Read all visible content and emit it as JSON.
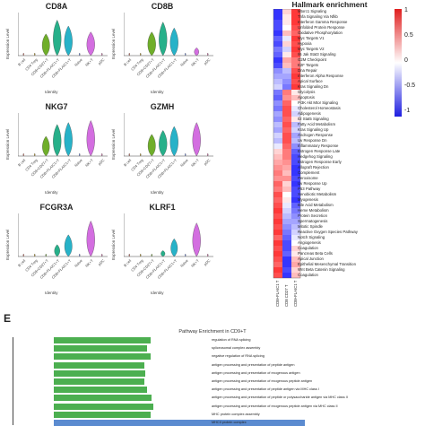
{
  "violin": {
    "ylabel": "Expression Level",
    "xlabel": "Identity",
    "categories": [
      "B cell",
      "CD4 Treg",
      "CD8+CD27+T",
      "CD8+FLAIC1+T",
      "CD8+FLAIC1+T",
      "Naive",
      "NK+T",
      "pDC"
    ],
    "colors": [
      "#e8786a",
      "#c9a227",
      "#6fae2a",
      "#27b08a",
      "#27b2c8",
      "#6f8ef0",
      "#d36ee0",
      "#e86fb5"
    ],
    "panels": [
      {
        "title": "CD8A",
        "levels": [
          0.05,
          0.05,
          0.55,
          0.9,
          0.75,
          0.05,
          0.6,
          0.05
        ]
      },
      {
        "title": "CD8B",
        "levels": [
          0.05,
          0.05,
          0.6,
          0.85,
          0.7,
          0.05,
          0.2,
          0.05
        ]
      },
      {
        "title": "NKG7",
        "levels": [
          0.05,
          0.05,
          0.5,
          0.8,
          0.85,
          0.05,
          0.9,
          0.05
        ]
      },
      {
        "title": "GZMH",
        "levels": [
          0.05,
          0.05,
          0.55,
          0.65,
          0.75,
          0.05,
          0.85,
          0.05
        ]
      },
      {
        "title": "FCGR3A",
        "levels": [
          0.05,
          0.05,
          0.05,
          0.3,
          0.55,
          0.05,
          0.9,
          0.05
        ]
      },
      {
        "title": "KLRF1",
        "levels": [
          0.05,
          0.05,
          0.05,
          0.15,
          0.45,
          0.05,
          0.85,
          0.05
        ]
      }
    ]
  },
  "heatmap": {
    "title": "Hallmark enrichment",
    "columns": [
      "CD8+FLAIC1 T",
      "CD8 CD27 T",
      "CD8+FLAIC1 T"
    ],
    "scale_labels": [
      "1",
      "0.5",
      "0",
      "-0.5",
      "-1"
    ],
    "rows": [
      {
        "name": "Mtorc1 Signaling",
        "v": [
          -0.9,
          0.2,
          0.9
        ]
      },
      {
        "name": "Tnfa Signaling Via Nfkb",
        "v": [
          -0.9,
          0.1,
          0.9
        ]
      },
      {
        "name": "Interferon Gamma Response",
        "v": [
          -0.8,
          0.1,
          0.9
        ]
      },
      {
        "name": "Unfolded Protein Response",
        "v": [
          -0.8,
          0.0,
          0.8
        ]
      },
      {
        "name": "Oxidative Phosphorylation",
        "v": [
          -0.9,
          0.3,
          0.7
        ]
      },
      {
        "name": "Myc Targets V1",
        "v": [
          -0.7,
          -0.1,
          0.9
        ]
      },
      {
        "name": "Hypoxia",
        "v": [
          -0.8,
          0.2,
          0.8
        ]
      },
      {
        "name": "Myc Targets V2",
        "v": [
          -0.6,
          -0.2,
          0.9
        ]
      },
      {
        "name": "Il6 Jak Stat3 Signaling",
        "v": [
          -0.7,
          0.1,
          0.8
        ]
      },
      {
        "name": "G2M Checkpoint",
        "v": [
          -0.9,
          0.4,
          0.6
        ]
      },
      {
        "name": "E2F Targets",
        "v": [
          -0.8,
          0.3,
          0.6
        ]
      },
      {
        "name": "Dna Repair",
        "v": [
          -0.5,
          -0.3,
          0.8
        ]
      },
      {
        "name": "Interferon Alpha Response",
        "v": [
          -0.4,
          -0.4,
          0.9
        ]
      },
      {
        "name": "Apical Surface",
        "v": [
          -0.3,
          -0.5,
          0.8
        ]
      },
      {
        "name": "Kras Signaling Dn",
        "v": [
          -0.2,
          -0.6,
          0.9
        ]
      },
      {
        "name": "Glycolysis",
        "v": [
          -0.6,
          0.6,
          0.1
        ]
      },
      {
        "name": "Apoptosis",
        "v": [
          -0.7,
          0.5,
          0.3
        ]
      },
      {
        "name": "Pi3K Akt Mtor Signaling",
        "v": [
          -0.5,
          0.7,
          0.0
        ]
      },
      {
        "name": "Cholesterol Homeostasis",
        "v": [
          -0.6,
          0.8,
          -0.1
        ]
      },
      {
        "name": "Adipogenesis",
        "v": [
          -0.4,
          0.8,
          -0.2
        ]
      },
      {
        "name": "Il2 Stat5 Signaling",
        "v": [
          -0.5,
          0.7,
          0.1
        ]
      },
      {
        "name": "Fatty Acid Metabolism",
        "v": [
          -0.3,
          0.8,
          -0.3
        ]
      },
      {
        "name": "Kras Signaling Up",
        "v": [
          -0.4,
          0.7,
          -0.2
        ]
      },
      {
        "name": "Androgen Response",
        "v": [
          -0.2,
          0.8,
          -0.4
        ]
      },
      {
        "name": "Uv Response Dn",
        "v": [
          -0.3,
          0.8,
          -0.3
        ]
      },
      {
        "name": "Inflammatory Response",
        "v": [
          -0.1,
          0.7,
          -0.5
        ]
      },
      {
        "name": "Estrogen Response Late",
        "v": [
          0.2,
          0.6,
          -0.7
        ]
      },
      {
        "name": "Hedgehog Signaling",
        "v": [
          0.3,
          0.6,
          -0.8
        ]
      },
      {
        "name": "Estrogen Response Early",
        "v": [
          0.4,
          0.5,
          -0.8
        ]
      },
      {
        "name": "Allograft Rejection",
        "v": [
          0.5,
          0.4,
          -0.9
        ]
      },
      {
        "name": "Complement",
        "v": [
          0.6,
          0.3,
          -0.9
        ]
      },
      {
        "name": "Peroxisome",
        "v": [
          0.5,
          0.5,
          -0.8
        ]
      },
      {
        "name": "Uv Response Up",
        "v": [
          0.7,
          0.2,
          -0.9
        ]
      },
      {
        "name": "P53 Pathway",
        "v": [
          0.6,
          0.3,
          -0.8
        ]
      },
      {
        "name": "Xenobiotic Metabolism",
        "v": [
          0.8,
          0.0,
          -0.8
        ]
      },
      {
        "name": "Myogenesis",
        "v": [
          0.7,
          0.1,
          -0.9
        ]
      },
      {
        "name": "Bile Acid Metabolism",
        "v": [
          0.8,
          -0.1,
          -0.7
        ]
      },
      {
        "name": "Heme Metabolism",
        "v": [
          0.9,
          -0.2,
          -0.6
        ]
      },
      {
        "name": "Protein Secretion",
        "v": [
          0.8,
          -0.3,
          -0.5
        ]
      },
      {
        "name": "Spermatogenesis",
        "v": [
          0.9,
          -0.4,
          -0.4
        ]
      },
      {
        "name": "Mitotic Spindle",
        "v": [
          0.8,
          -0.5,
          -0.3
        ]
      },
      {
        "name": "Reactive Oxygen Species Pathway",
        "v": [
          0.9,
          -0.6,
          -0.2
        ]
      },
      {
        "name": "Notch Signaling",
        "v": [
          0.7,
          -0.7,
          -0.1
        ]
      },
      {
        "name": "Angiogenesis",
        "v": [
          0.9,
          -0.8,
          0.0
        ]
      },
      {
        "name": "Coagulation",
        "v": [
          0.8,
          -0.8,
          0.2
        ]
      },
      {
        "name": "Pancreas Beta Cells",
        "v": [
          0.9,
          -0.7,
          0.1
        ]
      },
      {
        "name": "Apical Junction",
        "v": [
          0.8,
          -0.9,
          0.3
        ]
      },
      {
        "name": "Epithelial Mesenchymal Transition",
        "v": [
          0.7,
          -0.9,
          0.4
        ]
      },
      {
        "name": "Wnt Beta Catenin Signaling",
        "v": [
          0.9,
          -0.8,
          0.2
        ]
      },
      {
        "name": "Coagulation",
        "v": [
          0.8,
          -0.9,
          0.3
        ]
      }
    ]
  },
  "section_label": "E",
  "enrichment": {
    "title": "Pathway Enrichment in CD9+T",
    "bars": [
      {
        "label": "regulation of RNA splicing",
        "value": 0.62,
        "color": "#4caf50"
      },
      {
        "label": "spliceosomal complex assembly",
        "value": 0.6,
        "color": "#4caf50"
      },
      {
        "label": "negative regulation of RNA splicing",
        "value": 0.62,
        "color": "#4caf50"
      },
      {
        "label": "antigen processing and presentation of peptide antigen",
        "value": 0.58,
        "color": "#4caf50"
      },
      {
        "label": "antigen processing and presentation of exogenous antigen",
        "value": 0.59,
        "color": "#4caf50"
      },
      {
        "label": "antigen processing and presentation of exogenous peptide antigen",
        "value": 0.58,
        "color": "#4caf50"
      },
      {
        "label": "antigen processing and presentation of peptide antigen via MHC class I",
        "value": 0.6,
        "color": "#4caf50"
      },
      {
        "label": "antigen processing and presentation of peptide or polysaccharide antigen via MHC class II",
        "value": 0.63,
        "color": "#4caf50"
      },
      {
        "label": "antigen processing and presentation of exogenous peptide antigen via MHC class II",
        "value": 0.64,
        "color": "#4caf50"
      },
      {
        "label": "MHC protein complex assembly",
        "value": 0.62,
        "color": "#4caf50"
      },
      {
        "label": "MHCII protein complex",
        "value": 1.0,
        "color": "#5b8bd0"
      }
    ]
  }
}
